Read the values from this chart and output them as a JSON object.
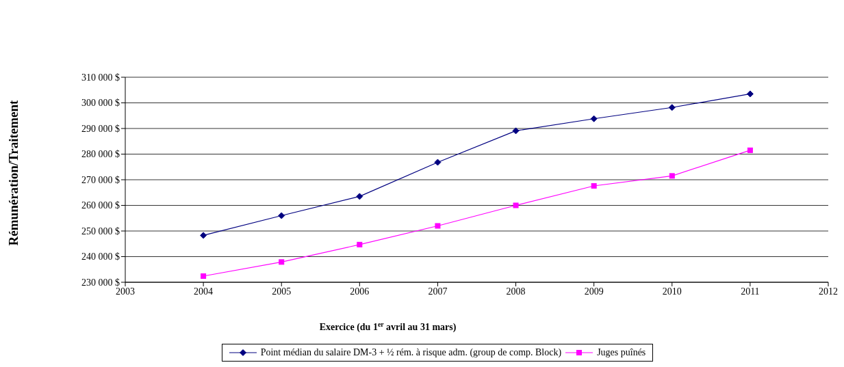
{
  "chart_data": {
    "type": "line",
    "xlabel": "Exercice (du 1$^{er}$ avril au 31 mars)",
    "ylabel": "Rémunération/Traitement",
    "x": [
      2004,
      2005,
      2006,
      2007,
      2008,
      2009,
      2010,
      2011
    ],
    "series": [
      {
        "name": "Point médian du salaire DM-3 + ½ rém. à risque adm. (group de comp. Block)",
        "color": "#000080",
        "marker": "diamond",
        "values": [
          248300,
          256000,
          263500,
          276800,
          289100,
          293800,
          298200,
          303500
        ]
      },
      {
        "name": "Juges puînés",
        "color": "#ff00ff",
        "marker": "square",
        "values": [
          232400,
          237900,
          244700,
          252000,
          260000,
          267600,
          271500,
          281500
        ]
      }
    ],
    "xlim": [
      2003,
      2012
    ],
    "xticks": [
      2003,
      2004,
      2005,
      2006,
      2007,
      2008,
      2009,
      2010,
      2011,
      2012
    ],
    "ylim": [
      230000,
      310000
    ],
    "yticks": [
      {
        "value": 230000,
        "label": "230 000  $"
      },
      {
        "value": 240000,
        "label": "240 000  $"
      },
      {
        "value": 250000,
        "label": "250 000  $"
      },
      {
        "value": 260000,
        "label": "260 000  $"
      },
      {
        "value": 270000,
        "label": "270 000  $"
      },
      {
        "value": 280000,
        "label": "280 000  $"
      },
      {
        "value": 290000,
        "label": "290 000  $"
      },
      {
        "value": 300000,
        "label": "300 000  $"
      },
      {
        "value": 310000,
        "label": "310 000  $"
      }
    ],
    "grid": "y",
    "legend": "bottom",
    "line_style": "solid"
  }
}
